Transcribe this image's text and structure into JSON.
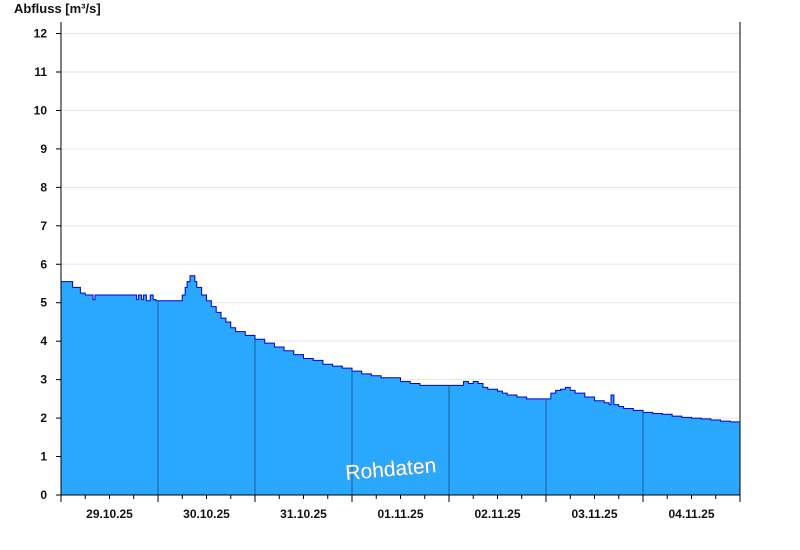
{
  "chart_data": {
    "type": "area",
    "ylabel": "Abfluss [m³/s]",
    "ylim": [
      0,
      12.3
    ],
    "yticks": [
      0,
      1,
      2,
      3,
      4,
      5,
      6,
      7,
      8,
      9,
      10,
      11,
      12
    ],
    "xlim": [
      0,
      7
    ],
    "xticks": [
      {
        "x": 0.5,
        "label": "29.10.25"
      },
      {
        "x": 1.5,
        "label": "30.10.25"
      },
      {
        "x": 2.5,
        "label": "31.10.25"
      },
      {
        "x": 3.5,
        "label": "01.11.25"
      },
      {
        "x": 4.5,
        "label": "02.11.25"
      },
      {
        "x": 5.5,
        "label": "03.11.25"
      },
      {
        "x": 6.5,
        "label": "04.11.25"
      }
    ],
    "day_boundaries": [
      1,
      2,
      3,
      4,
      5,
      6
    ],
    "grid": true,
    "fill_color": "#29a8fe",
    "line_color": "#0000cc",
    "annotation": "Rohdaten",
    "series": [
      {
        "x": [
          0,
          0.09,
          0.12,
          0.2,
          0.25,
          0.3,
          0.33,
          0.35,
          0.38,
          0.45,
          0.6,
          0.75,
          0.78,
          0.8,
          0.83,
          0.85,
          0.88,
          0.92,
          0.95,
          0.98,
          1.0,
          1.1,
          1.2,
          1.25,
          1.28,
          1.3,
          1.33,
          1.36,
          1.38,
          1.4,
          1.45,
          1.5,
          1.55,
          1.6,
          1.65,
          1.7,
          1.75,
          1.8,
          1.9,
          2.0,
          2.1,
          2.2,
          2.3,
          2.4,
          2.5,
          2.6,
          2.7,
          2.8,
          2.9,
          3.0,
          3.1,
          3.2,
          3.3,
          3.5,
          3.6,
          3.7,
          3.8,
          3.9,
          4.0,
          4.1,
          4.15,
          4.2,
          4.25,
          4.3,
          4.35,
          4.4,
          4.5,
          4.55,
          4.6,
          4.7,
          4.8,
          4.9,
          5.0,
          5.05,
          5.1,
          5.15,
          5.2,
          5.25,
          5.3,
          5.4,
          5.5,
          5.6,
          5.65,
          5.67,
          5.7,
          5.75,
          5.8,
          5.9,
          6.0,
          6.1,
          6.2,
          6.3,
          6.4,
          6.5,
          6.6,
          6.7,
          6.8,
          6.9,
          7.0
        ],
        "y": [
          5.55,
          5.55,
          5.4,
          5.25,
          5.2,
          5.2,
          5.08,
          5.2,
          5.2,
          5.2,
          5.2,
          5.2,
          5.08,
          5.2,
          5.08,
          5.2,
          5.05,
          5.2,
          5.08,
          5.05,
          5.05,
          5.05,
          5.05,
          5.2,
          5.4,
          5.55,
          5.7,
          5.7,
          5.55,
          5.4,
          5.2,
          5.05,
          4.9,
          4.75,
          4.6,
          4.5,
          4.35,
          4.25,
          4.15,
          4.05,
          3.95,
          3.85,
          3.75,
          3.65,
          3.55,
          3.5,
          3.4,
          3.35,
          3.3,
          3.22,
          3.15,
          3.1,
          3.05,
          2.95,
          2.9,
          2.85,
          2.85,
          2.85,
          2.85,
          2.85,
          2.95,
          2.9,
          2.95,
          2.9,
          2.8,
          2.75,
          2.7,
          2.65,
          2.6,
          2.55,
          2.5,
          2.5,
          2.5,
          2.65,
          2.72,
          2.75,
          2.8,
          2.72,
          2.65,
          2.55,
          2.45,
          2.4,
          2.35,
          2.6,
          2.35,
          2.3,
          2.25,
          2.2,
          2.15,
          2.12,
          2.1,
          2.05,
          2.02,
          2.0,
          1.98,
          1.95,
          1.92,
          1.9,
          1.85
        ]
      }
    ]
  }
}
